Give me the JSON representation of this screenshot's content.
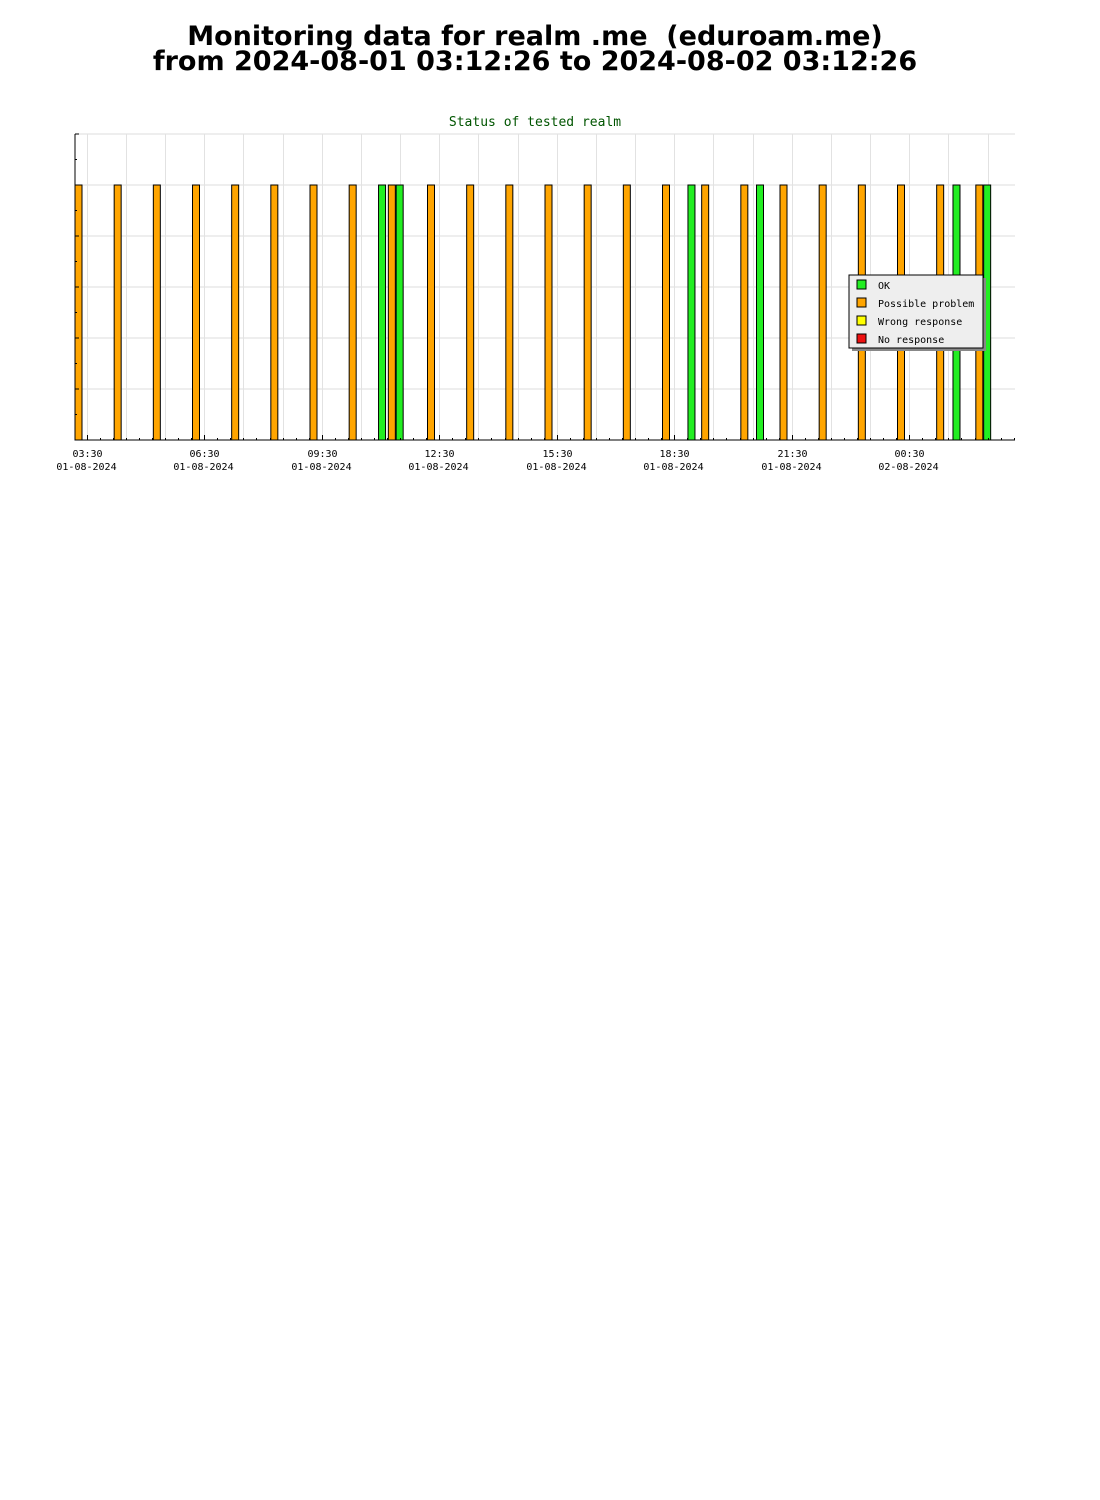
{
  "page": {
    "title_line1": "Monitoring data for realm .me  (eduroam.me)",
    "title_line2": "from 2024-08-01 03:12:26 to 2024-08-02 03:12:26"
  },
  "chart_data": {
    "type": "bar",
    "title": "Status of tested realm",
    "xlabel": "",
    "ylabel": "",
    "x_range": [
      "2024-08-01 03:12",
      "2024-08-02 03:12"
    ],
    "x_ticks": [
      {
        "time": "03:30",
        "date": "01-08-2024"
      },
      {
        "time": "06:30",
        "date": "01-08-2024"
      },
      {
        "time": "09:30",
        "date": "01-08-2024"
      },
      {
        "time": "12:30",
        "date": "01-08-2024"
      },
      {
        "time": "15:30",
        "date": "01-08-2024"
      },
      {
        "time": "18:30",
        "date": "01-08-2024"
      },
      {
        "time": "21:30",
        "date": "01-08-2024"
      },
      {
        "time": "00:30",
        "date": "02-08-2024"
      }
    ],
    "ylim": [
      0,
      6
    ],
    "grid": true,
    "legend_position": "right",
    "legend": [
      {
        "name": "OK",
        "color": "#22ee22"
      },
      {
        "name": "Possible problem",
        "color": "#ffa500"
      },
      {
        "name": "Wrong response",
        "color": "#ffff00"
      },
      {
        "name": "No response",
        "color": "#ee1111"
      }
    ],
    "bars": [
      {
        "time": "2024-08-01 03:12",
        "status": "Possible problem",
        "value": 5
      },
      {
        "time": "2024-08-01 04:12",
        "status": "Possible problem",
        "value": 5
      },
      {
        "time": "2024-08-01 05:12",
        "status": "Possible problem",
        "value": 5
      },
      {
        "time": "2024-08-01 06:12",
        "status": "Possible problem",
        "value": 5
      },
      {
        "time": "2024-08-01 07:12",
        "status": "Possible problem",
        "value": 5
      },
      {
        "time": "2024-08-01 08:12",
        "status": "Possible problem",
        "value": 5
      },
      {
        "time": "2024-08-01 09:12",
        "status": "Possible problem",
        "value": 5
      },
      {
        "time": "2024-08-01 10:12",
        "status": "Possible problem",
        "value": 5
      },
      {
        "time": "2024-08-01 10:57",
        "status": "OK",
        "value": 5
      },
      {
        "time": "2024-08-01 11:12",
        "status": "Possible problem",
        "value": 5
      },
      {
        "time": "2024-08-01 11:24",
        "status": "OK",
        "value": 5
      },
      {
        "time": "2024-08-01 12:12",
        "status": "Possible problem",
        "value": 5
      },
      {
        "time": "2024-08-01 13:12",
        "status": "Possible problem",
        "value": 5
      },
      {
        "time": "2024-08-01 14:12",
        "status": "Possible problem",
        "value": 5
      },
      {
        "time": "2024-08-01 15:12",
        "status": "Possible problem",
        "value": 5
      },
      {
        "time": "2024-08-01 16:12",
        "status": "Possible problem",
        "value": 5
      },
      {
        "time": "2024-08-01 17:12",
        "status": "Possible problem",
        "value": 5
      },
      {
        "time": "2024-08-01 18:12",
        "status": "Possible problem",
        "value": 5
      },
      {
        "time": "2024-08-01 18:51",
        "status": "OK",
        "value": 5
      },
      {
        "time": "2024-08-01 19:12",
        "status": "Possible problem",
        "value": 5
      },
      {
        "time": "2024-08-01 20:12",
        "status": "Possible problem",
        "value": 5
      },
      {
        "time": "2024-08-01 20:36",
        "status": "OK",
        "value": 5
      },
      {
        "time": "2024-08-01 21:12",
        "status": "Possible problem",
        "value": 5
      },
      {
        "time": "2024-08-01 22:12",
        "status": "Possible problem",
        "value": 5
      },
      {
        "time": "2024-08-01 23:12",
        "status": "Possible problem",
        "value": 5
      },
      {
        "time": "2024-08-02 00:12",
        "status": "Possible problem",
        "value": 5
      },
      {
        "time": "2024-08-02 01:12",
        "status": "Possible problem",
        "value": 5
      },
      {
        "time": "2024-08-02 01:37",
        "status": "OK",
        "value": 5
      },
      {
        "time": "2024-08-02 02:12",
        "status": "Possible problem",
        "value": 5
      },
      {
        "time": "2024-08-02 02:24",
        "status": "OK",
        "value": 5
      }
    ]
  }
}
